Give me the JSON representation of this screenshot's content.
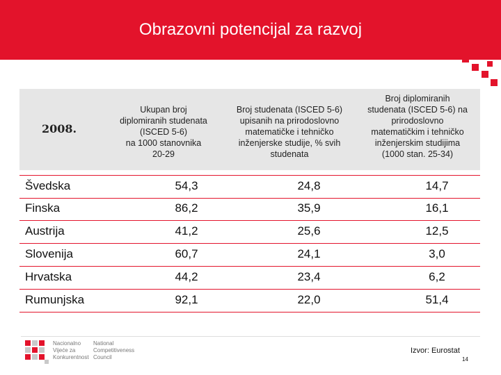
{
  "title": "Obrazovni potencijal za razvoj",
  "table": {
    "year_label": "2008.",
    "col1": [
      "Ukupan broj",
      "diplomiranih studenata",
      "(ISCED 5-6)",
      "na 1000 stanovnika",
      "20-29"
    ],
    "col2": [
      "Broj studenata (ISCED 5-6)",
      "upisanih na prirodoslovno",
      "matematičke i tehničko",
      "inženjerske studije, % svih",
      "studenata"
    ],
    "col3": [
      "Broj diplomiranih",
      "studenata (ISCED 5-6) na",
      "prirodoslovno",
      "matematičkim i tehničko",
      "inženjerskim studijima",
      "(1000 stan. 25-34)"
    ],
    "rows": [
      {
        "country": "Švedska",
        "v1": "54,3",
        "v2": "24,8",
        "v3": "14,7"
      },
      {
        "country": "Finska",
        "v1": "86,2",
        "v2": "35,9",
        "v3": "16,1"
      },
      {
        "country": "Austrija",
        "v1": "41,2",
        "v2": "25,6",
        "v3": "12,5"
      },
      {
        "country": "Slovenija",
        "v1": "60,7",
        "v2": "24,1",
        "v3": "3,0"
      },
      {
        "country": "Hrvatska",
        "v1": "44,2",
        "v2": "23,4",
        "v3": "6,2"
      },
      {
        "country": "Rumunjska",
        "v1": "92,1",
        "v2": "22,0",
        "v3": "51,4"
      }
    ]
  },
  "footer": {
    "logo_hr": [
      "Nacionalno",
      "Vijeće za",
      "Konkurentnost"
    ],
    "logo_en": [
      "National",
      "Competitiveness",
      "Council"
    ],
    "source": "Izvor: Eurostat",
    "page": "14"
  },
  "colors": {
    "accent": "#e3132b",
    "header_bg": "#e6e6e6"
  }
}
